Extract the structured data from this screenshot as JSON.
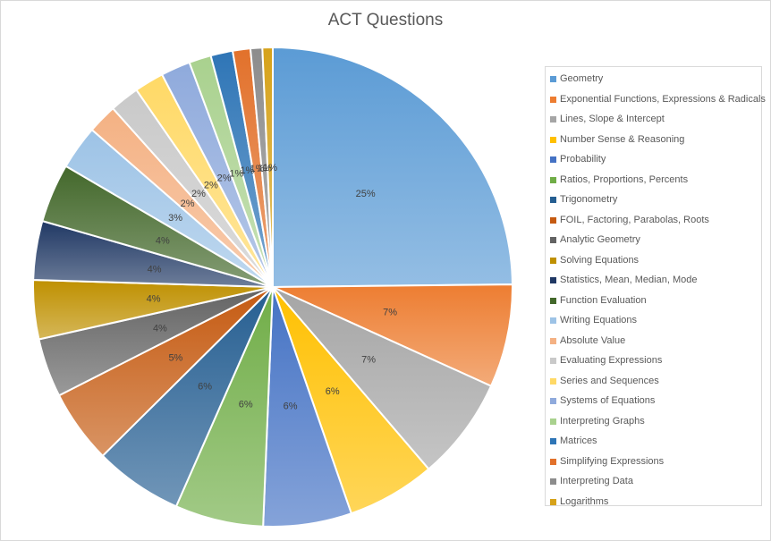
{
  "chart_data": {
    "type": "pie",
    "title": "ACT Questions",
    "legend_position": "right",
    "slices": [
      {
        "name": "Geometry",
        "value": 25,
        "label": "25%",
        "color": "#5b9bd5"
      },
      {
        "name": "Exponential Functions, Expressions & Radicals",
        "value": 7,
        "label": "7%",
        "color": "#ed7d31"
      },
      {
        "name": "Lines, Slope & Intercept",
        "value": 7,
        "label": "7%",
        "color": "#a5a5a5"
      },
      {
        "name": "Number Sense & Reasoning",
        "value": 6,
        "label": "6%",
        "color": "#ffc000"
      },
      {
        "name": "Probability",
        "value": 6,
        "label": "6%",
        "color": "#4472c4"
      },
      {
        "name": "Ratios, Proportions, Percents",
        "value": 6,
        "label": "6%",
        "color": "#70ad47"
      },
      {
        "name": "Trigonometry",
        "value": 6,
        "label": "6%",
        "color": "#255e91"
      },
      {
        "name": "FOIL, Factoring, Parabolas, Roots",
        "value": 5,
        "label": "5%",
        "color": "#c55a11"
      },
      {
        "name": "Analytic Geometry",
        "value": 4,
        "label": "4%",
        "color": "#636363"
      },
      {
        "name": "Solving Equations",
        "value": 4,
        "label": "4%",
        "color": "#bf9000"
      },
      {
        "name": "Statistics, Mean, Median, Mode",
        "value": 4,
        "label": "4%",
        "color": "#203864"
      },
      {
        "name": "Function Evaluation",
        "value": 4,
        "label": "4%",
        "color": "#43682b"
      },
      {
        "name": "Writing Equations",
        "value": 3,
        "label": "3%",
        "color": "#9dc3e6"
      },
      {
        "name": "Absolute Value",
        "value": 2,
        "label": "2%",
        "color": "#f4b183"
      },
      {
        "name": "Evaluating Expressions",
        "value": 2,
        "label": "2%",
        "color": "#c9c9c9"
      },
      {
        "name": "Series and Sequences",
        "value": 2,
        "label": "2%",
        "color": "#ffd966"
      },
      {
        "name": "Systems of Equations",
        "value": 2,
        "label": "2%",
        "color": "#8faadc"
      },
      {
        "name": "Interpreting Graphs",
        "value": 1.5,
        "label": "1%",
        "color": "#a9d18e"
      },
      {
        "name": "Matrices",
        "value": 1.5,
        "label": "1%",
        "color": "#2e75b6"
      },
      {
        "name": "Simplifying Expressions",
        "value": 1.2,
        "label": "1%",
        "color": "#e2712b"
      },
      {
        "name": "Interpreting Data",
        "value": 0.8,
        "label": "1%",
        "color": "#8c8c8c"
      },
      {
        "name": "Logarithms",
        "value": 0.7,
        "label": "1%",
        "color": "#d6a21a"
      }
    ]
  }
}
